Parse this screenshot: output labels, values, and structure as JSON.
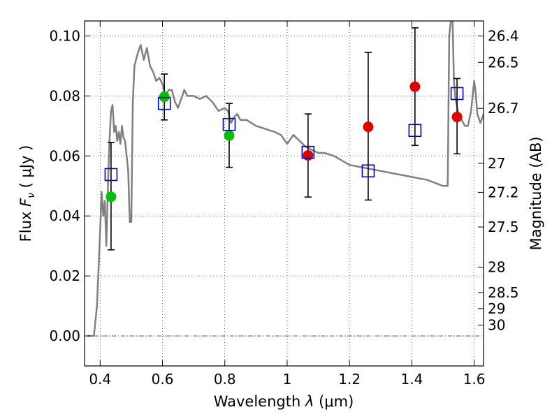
{
  "chart_data": {
    "type": "scatter",
    "xlabel_prefix": "Wavelength  ",
    "xlabel_symbol": "λ",
    "xlabel_unit": " (μm)",
    "ylabel_prefix": "Flux  ",
    "ylabel_symbol": "F",
    "ylabel_subscript": "ν",
    "ylabel_unit": "  ( μJy )",
    "y2label": "Magnitude (AB)",
    "xlim": [
      0.35,
      1.63
    ],
    "ylim": [
      -0.01,
      0.105
    ],
    "grid": true,
    "x_ticks": [
      0.4,
      0.6,
      0.8,
      1.0,
      1.2,
      1.4,
      1.6
    ],
    "x_tick_labels": [
      "0.4",
      "0.6",
      "0.8",
      "1",
      "1.2",
      "1.4",
      "1.6"
    ],
    "y_ticks": [
      0.0,
      0.02,
      0.04,
      0.06,
      0.08,
      0.1
    ],
    "y_tick_labels": [
      "0.00",
      "0.02",
      "0.04",
      "0.06",
      "0.08",
      "0.10"
    ],
    "y2_ticks": [
      {
        "mag": "26.4"
      },
      {
        "mag": "26.5"
      },
      {
        "mag": "26.7"
      },
      {
        "mag": "27"
      },
      {
        "mag": "27.2"
      },
      {
        "mag": "27.5"
      },
      {
        "mag": "28"
      },
      {
        "mag": "28.5"
      },
      {
        "mag": "29"
      },
      {
        "mag": "30"
      }
    ],
    "zero_line": 0.0,
    "series": [
      {
        "kind": "model",
        "color": "#808080",
        "x": [
          0.36,
          0.38,
          0.39,
          0.4,
          0.405,
          0.41,
          0.415,
          0.42,
          0.425,
          0.43,
          0.435,
          0.44,
          0.445,
          0.45,
          0.455,
          0.46,
          0.465,
          0.47,
          0.475,
          0.48,
          0.485,
          0.49,
          0.495,
          0.5,
          0.505,
          0.51,
          0.52,
          0.53,
          0.54,
          0.55,
          0.56,
          0.57,
          0.58,
          0.59,
          0.6,
          0.61,
          0.62,
          0.63,
          0.64,
          0.65,
          0.66,
          0.67,
          0.68,
          0.69,
          0.7,
          0.72,
          0.74,
          0.76,
          0.78,
          0.8,
          0.81,
          0.82,
          0.83,
          0.84,
          0.85,
          0.87,
          0.9,
          0.93,
          0.96,
          0.98,
          1.0,
          1.02,
          1.04,
          1.06,
          1.08,
          1.1,
          1.12,
          1.15,
          1.2,
          1.25,
          1.3,
          1.35,
          1.4,
          1.45,
          1.5,
          1.51,
          1.515,
          1.52,
          1.525,
          1.53,
          1.535,
          1.54,
          1.55,
          1.56,
          1.57,
          1.58,
          1.59,
          1.6,
          1.605,
          1.61,
          1.62,
          1.63
        ],
        "y": [
          0.0,
          0.0,
          0.01,
          0.035,
          0.048,
          0.04,
          0.045,
          0.03,
          0.05,
          0.065,
          0.075,
          0.077,
          0.068,
          0.07,
          0.065,
          0.068,
          0.064,
          0.07,
          0.066,
          0.065,
          0.06,
          0.055,
          0.038,
          0.038,
          0.078,
          0.09,
          0.094,
          0.097,
          0.092,
          0.096,
          0.09,
          0.088,
          0.085,
          0.086,
          0.084,
          0.08,
          0.082,
          0.082,
          0.078,
          0.076,
          0.079,
          0.082,
          0.08,
          0.08,
          0.08,
          0.079,
          0.08,
          0.078,
          0.075,
          0.076,
          0.075,
          0.071,
          0.073,
          0.074,
          0.072,
          0.072,
          0.07,
          0.069,
          0.068,
          0.067,
          0.064,
          0.067,
          0.065,
          0.063,
          0.062,
          0.061,
          0.061,
          0.06,
          0.057,
          0.056,
          0.055,
          0.054,
          0.053,
          0.052,
          0.05,
          0.05,
          0.05,
          0.1,
          0.105,
          0.108,
          0.085,
          0.079,
          0.074,
          0.072,
          0.07,
          0.07,
          0.075,
          0.085,
          0.081,
          0.074,
          0.071,
          0.074
        ]
      },
      {
        "kind": "observed_red",
        "color": "#e00000",
        "points": [
          {
            "x": 1.067,
            "y": 0.0602
          },
          {
            "x": 1.26,
            "y": 0.0697
          },
          {
            "x": 1.41,
            "y": 0.0831
          },
          {
            "x": 1.545,
            "y": 0.073
          }
        ]
      },
      {
        "kind": "observed_green",
        "color": "#00c000",
        "points": [
          {
            "x": 0.435,
            "y": 0.0464
          },
          {
            "x": 0.606,
            "y": 0.0797
          },
          {
            "x": 0.814,
            "y": 0.0668
          }
        ]
      },
      {
        "kind": "synthetic_boxes",
        "color": "#0000cc",
        "points": [
          {
            "x": 0.435,
            "y": 0.0538
          },
          {
            "x": 0.606,
            "y": 0.0775
          },
          {
            "x": 0.814,
            "y": 0.0705
          },
          {
            "x": 1.067,
            "y": 0.0612
          },
          {
            "x": 1.26,
            "y": 0.055
          },
          {
            "x": 1.41,
            "y": 0.0685
          },
          {
            "x": 1.545,
            "y": 0.0808
          }
        ]
      }
    ],
    "error_bars": [
      {
        "x": 0.435,
        "low": 0.0287,
        "high": 0.0645
      },
      {
        "x": 0.606,
        "low": 0.072,
        "high": 0.0873
      },
      {
        "x": 0.814,
        "low": 0.0562,
        "high": 0.0775
      },
      {
        "x": 1.067,
        "low": 0.0463,
        "high": 0.074
      },
      {
        "x": 1.26,
        "low": 0.0453,
        "high": 0.0945
      },
      {
        "x": 1.41,
        "low": 0.0635,
        "high": 0.1027
      },
      {
        "x": 1.545,
        "low": 0.0607,
        "high": 0.0858
      }
    ]
  }
}
